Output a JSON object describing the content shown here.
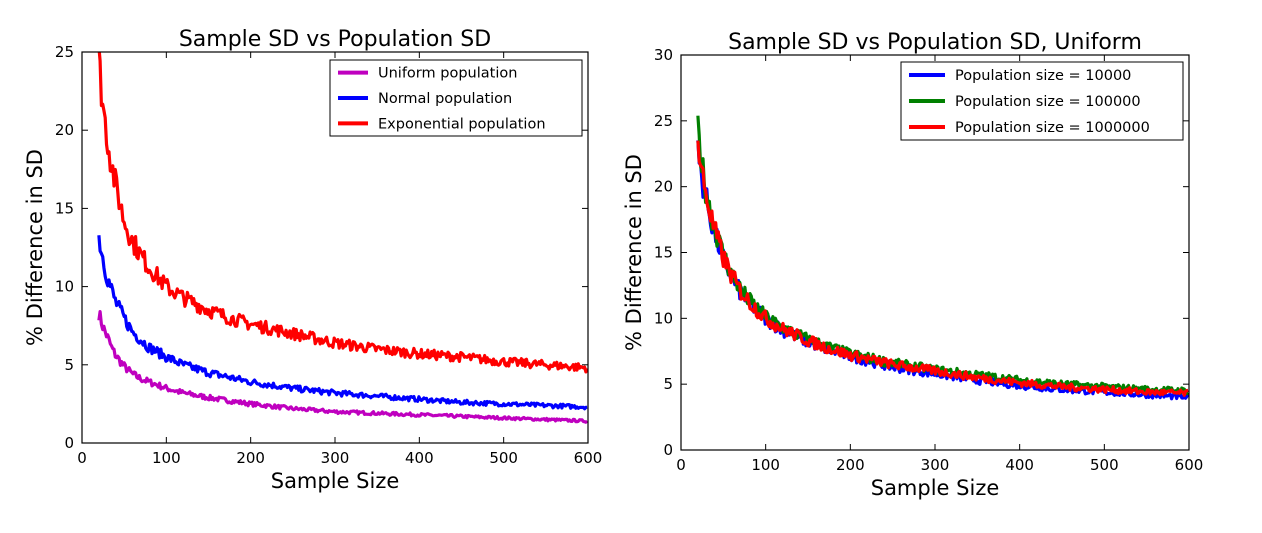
{
  "chart_data": [
    {
      "type": "line",
      "title": "Sample SD vs Population SD",
      "xlabel": "Sample Size",
      "ylabel": "% Difference in SD",
      "xlim": [
        0,
        600
      ],
      "ylim": [
        0,
        25
      ],
      "xticks": [
        "0",
        "100",
        "200",
        "300",
        "400",
        "500",
        "600"
      ],
      "yticks": [
        "0",
        "5",
        "10",
        "15",
        "20",
        "25"
      ],
      "legend_position": "top-right",
      "grid": false,
      "x": [
        20,
        25,
        30,
        35,
        40,
        50,
        60,
        70,
        80,
        100,
        120,
        150,
        175,
        200,
        250,
        300,
        350,
        400,
        450,
        500,
        550,
        600
      ],
      "series": [
        {
          "name": "Uniform population",
          "color": "#bf00bf",
          "values": [
            8.3,
            7.4,
            6.8,
            6.1,
            5.6,
            4.9,
            4.4,
            4.1,
            3.9,
            3.5,
            3.2,
            2.9,
            2.7,
            2.5,
            2.2,
            2.0,
            1.9,
            1.8,
            1.7,
            1.6,
            1.5,
            1.4
          ]
        },
        {
          "name": "Normal population",
          "color": "#0000ff",
          "values": [
            13.2,
            11.8,
            10.6,
            9.8,
            9.0,
            8.0,
            7.1,
            6.6,
            6.1,
            5.5,
            5.0,
            4.5,
            4.2,
            3.9,
            3.5,
            3.2,
            3.0,
            2.8,
            2.6,
            2.5,
            2.4,
            2.3
          ]
        },
        {
          "name": "Exponential population",
          "color": "#ff0000",
          "values": [
            24.5,
            21.5,
            19.5,
            17.8,
            16.5,
            14.2,
            12.9,
            12.0,
            11.2,
            10.0,
            9.3,
            8.5,
            8.0,
            7.6,
            7.0,
            6.4,
            6.0,
            5.7,
            5.5,
            5.2,
            5.0,
            4.8
          ]
        }
      ]
    },
    {
      "type": "line",
      "title": "Sample SD vs Population SD, Uniform",
      "xlabel": "Sample Size",
      "ylabel": "% Difference in SD",
      "xlim": [
        0,
        600
      ],
      "ylim": [
        0,
        30
      ],
      "xticks": [
        "0",
        "100",
        "200",
        "300",
        "400",
        "500",
        "600"
      ],
      "yticks": [
        "0",
        "5",
        "10",
        "15",
        "20",
        "25",
        "30"
      ],
      "legend_position": "top-right",
      "grid": false,
      "x": [
        20,
        25,
        30,
        35,
        40,
        50,
        60,
        70,
        80,
        100,
        120,
        150,
        175,
        200,
        250,
        300,
        350,
        400,
        450,
        500,
        550,
        600
      ],
      "series": [
        {
          "name": "Population size = 10000",
          "color": "#0000ff",
          "values": [
            22.5,
            20.5,
            19.0,
            17.6,
            16.4,
            14.5,
            13.1,
            12.0,
            11.2,
            10.0,
            9.1,
            8.2,
            7.6,
            7.1,
            6.3,
            5.8,
            5.3,
            4.9,
            4.6,
            4.4,
            4.2,
            4.0
          ]
        },
        {
          "name": "Population size = 100000",
          "color": "#008000",
          "values": [
            24.5,
            21.5,
            19.5,
            18.0,
            16.8,
            14.8,
            13.4,
            12.2,
            11.4,
            10.1,
            9.3,
            8.4,
            7.8,
            7.3,
            6.6,
            6.1,
            5.7,
            5.3,
            5.0,
            4.8,
            4.6,
            4.5
          ]
        },
        {
          "name": "Population size = 1000000",
          "color": "#ff0000",
          "values": [
            23.0,
            21.0,
            19.3,
            17.8,
            16.6,
            14.6,
            13.2,
            12.1,
            11.3,
            10.0,
            9.2,
            8.3,
            7.7,
            7.2,
            6.5,
            6.0,
            5.5,
            5.1,
            4.8,
            4.6,
            4.4,
            4.3
          ]
        }
      ]
    }
  ]
}
